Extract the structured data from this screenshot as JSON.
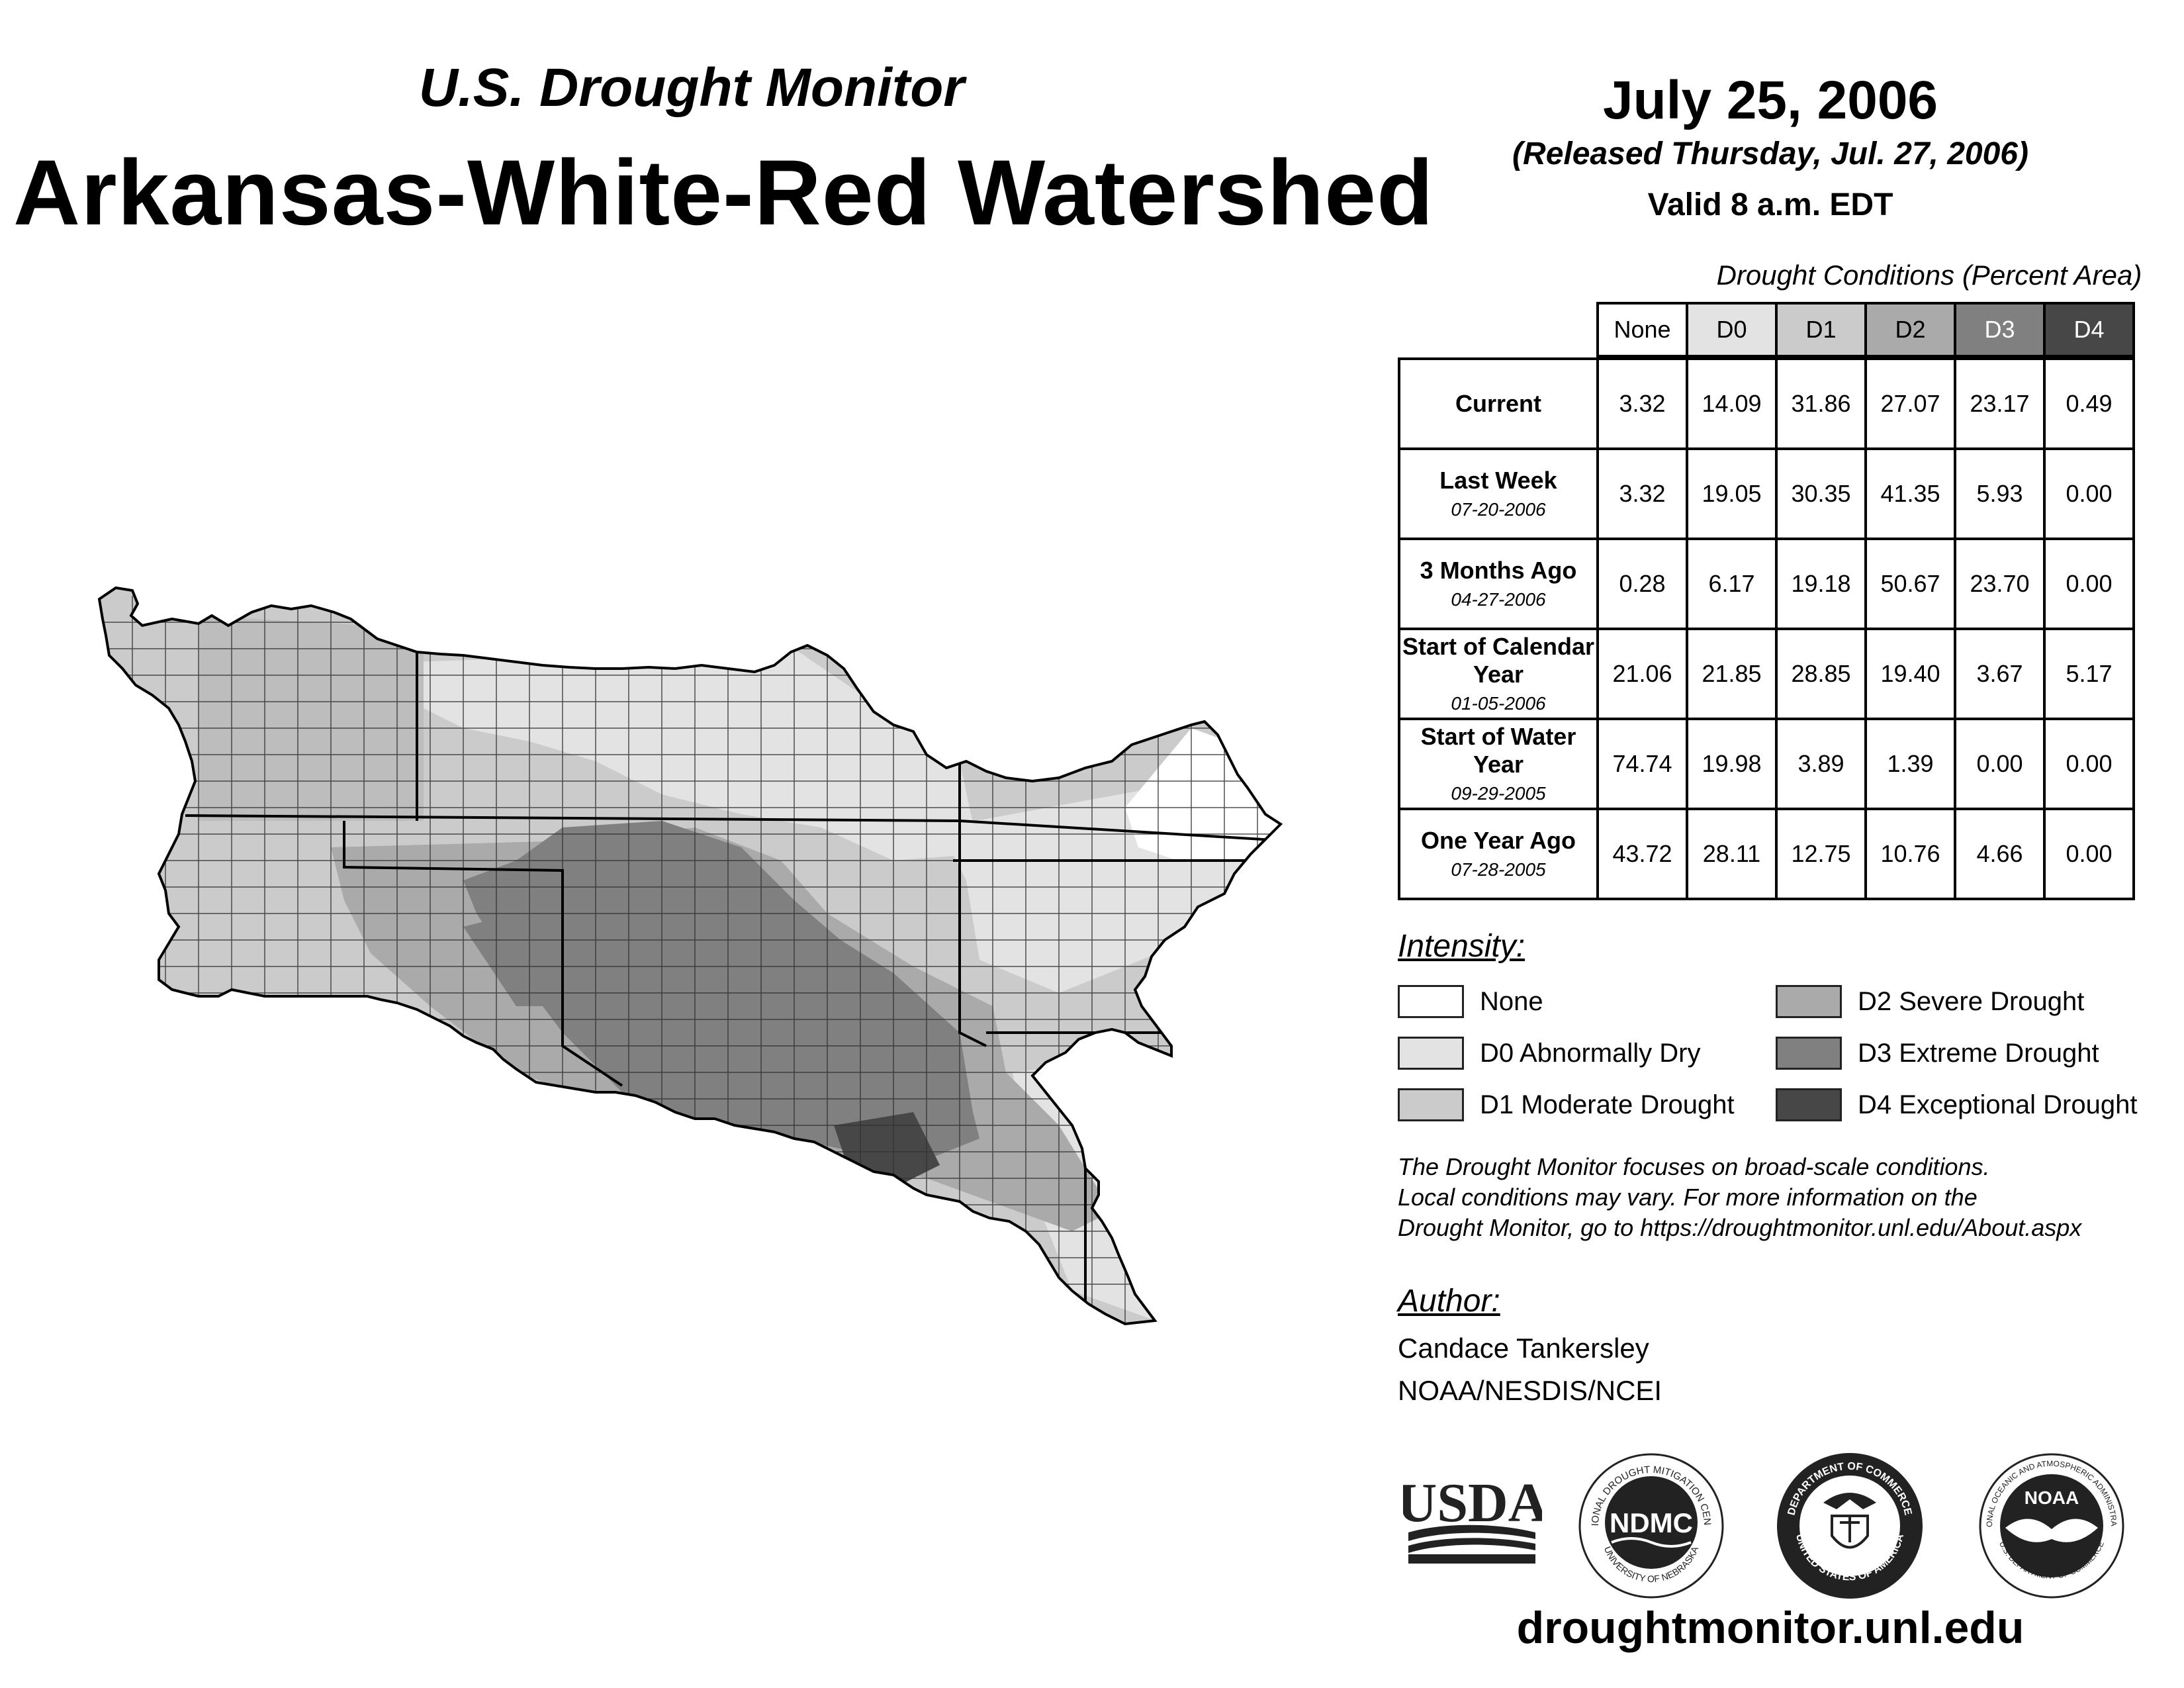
{
  "header": {
    "subtitle": "U.S. Drought Monitor",
    "title": "Arkansas-White-Red Watershed",
    "date": "July 25, 2006",
    "released": "(Released Thursday, Jul. 27, 2006)",
    "valid": "Valid 8 a.m. EDT"
  },
  "table": {
    "caption": "Drought Conditions (Percent Area)",
    "columns": [
      "None",
      "D0",
      "D1",
      "D2",
      "D3",
      "D4"
    ],
    "column_colors": [
      "#ffffff",
      "#e3e3e3",
      "#cbcbcb",
      "#aaaaaa",
      "#808080",
      "#474747"
    ],
    "column_text_colors": [
      "#000000",
      "#000000",
      "#000000",
      "#000000",
      "#ffffff",
      "#ffffff"
    ],
    "rows": [
      {
        "label": "Current",
        "date": "",
        "values": [
          "3.32",
          "14.09",
          "31.86",
          "27.07",
          "23.17",
          "0.49"
        ]
      },
      {
        "label": "Last Week",
        "date": "07-20-2006",
        "values": [
          "3.32",
          "19.05",
          "30.35",
          "41.35",
          "5.93",
          "0.00"
        ]
      },
      {
        "label": "3 Months Ago",
        "date": "04-27-2006",
        "values": [
          "0.28",
          "6.17",
          "19.18",
          "50.67",
          "23.70",
          "0.00"
        ]
      },
      {
        "label": "Start of Calendar Year",
        "date": "01-05-2006",
        "values": [
          "21.06",
          "21.85",
          "28.85",
          "19.40",
          "3.67",
          "5.17"
        ]
      },
      {
        "label": "Start of Water Year",
        "date": "09-29-2005",
        "values": [
          "74.74",
          "19.98",
          "3.89",
          "1.39",
          "0.00",
          "0.00"
        ]
      },
      {
        "label": "One Year Ago",
        "date": "07-28-2005",
        "values": [
          "43.72",
          "28.11",
          "12.75",
          "10.76",
          "4.66",
          "0.00"
        ]
      }
    ]
  },
  "legend": {
    "title": "Intensity:",
    "items": [
      {
        "label": "None",
        "color": "#ffffff"
      },
      {
        "label": "D0 Abnormally Dry",
        "color": "#e3e3e3"
      },
      {
        "label": "D1 Moderate Drought",
        "color": "#cbcbcb"
      },
      {
        "label": "D2 Severe Drought",
        "color": "#aaaaaa"
      },
      {
        "label": "D3 Extreme Drought",
        "color": "#808080"
      },
      {
        "label": "D4 Exceptional Drought",
        "color": "#474747"
      }
    ]
  },
  "note": {
    "line1": "The Drought Monitor focuses on broad-scale conditions.",
    "line2": "Local conditions may vary. For more information on the",
    "line3": "Drought Monitor, go to https://droughtmonitor.unl.edu/About.aspx"
  },
  "author": {
    "title": "Author:",
    "name": "Candace Tankersley",
    "org": "NOAA/NESDIS/NCEI"
  },
  "logos": {
    "usda": "USDA",
    "ndmc": "NDMC",
    "ndmc_ring_top": "NATIONAL DROUGHT MITIGATION CENTER",
    "ndmc_ring_bottom": "UNIVERSITY OF NEBRASKA",
    "doc_ring_top": "DEPARTMENT OF COMMERCE",
    "doc_ring_bottom": "UNITED STATES OF AMERICA",
    "noaa": "NOAA",
    "noaa_ring_top": "NATIONAL OCEANIC AND ATMOSPHERIC ADMINISTRATION",
    "noaa_ring_bottom": "U.S. DEPARTMENT OF COMMERCE"
  },
  "footer": {
    "url": "droughtmonitor.unl.edu"
  }
}
